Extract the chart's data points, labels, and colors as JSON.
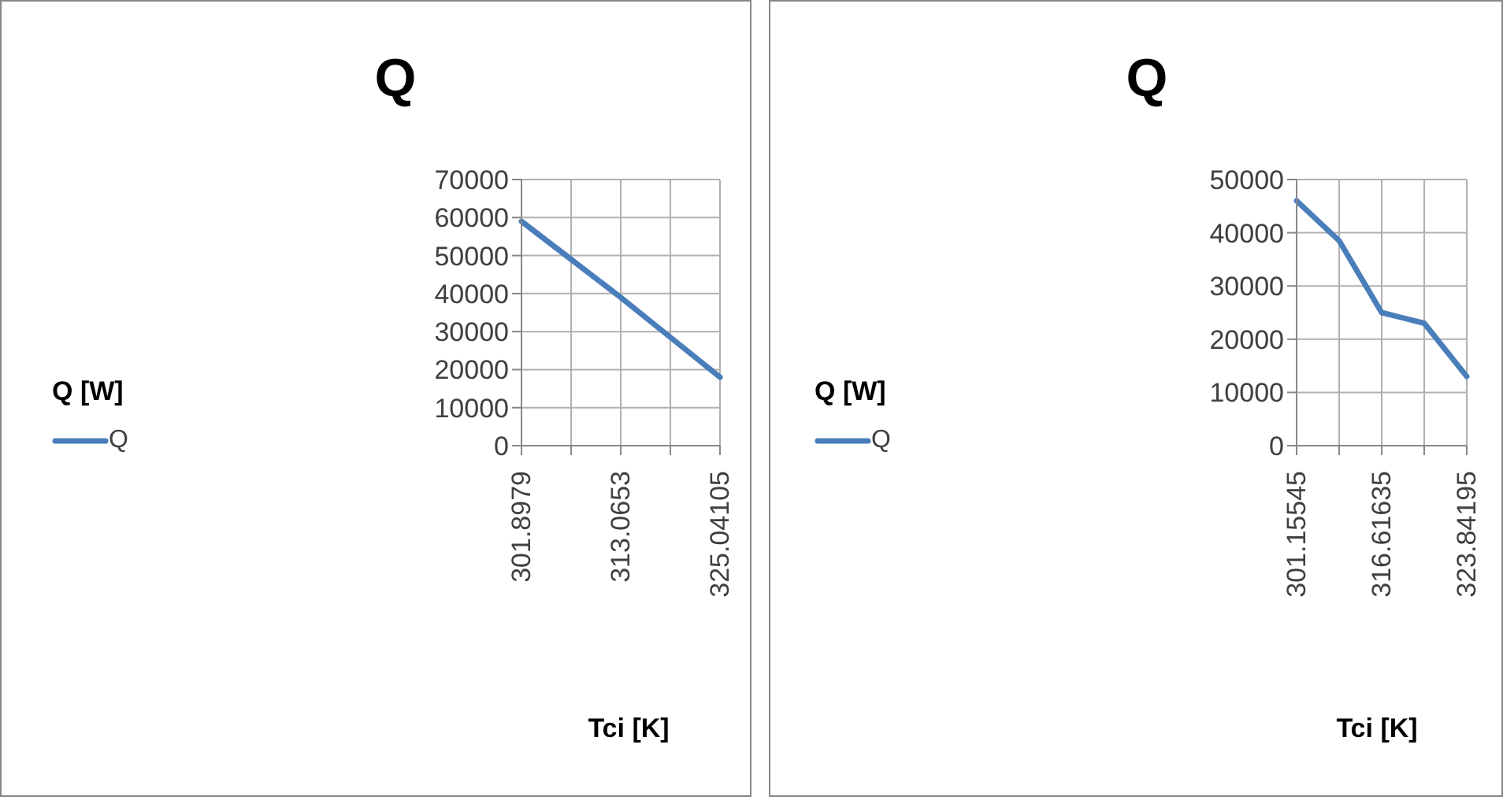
{
  "chart_data": [
    {
      "type": "line",
      "title": "Q",
      "xlabel": "Tci [K]",
      "legend_title": "Q [W]",
      "legend": "left",
      "grid": true,
      "marker": "none",
      "categories": [
        "301.8979",
        null,
        "313.0653",
        null,
        "325.04105"
      ],
      "ylim": [
        0,
        70000
      ],
      "yticks": [
        0,
        10000,
        20000,
        30000,
        40000,
        50000,
        60000,
        70000
      ],
      "series": [
        {
          "name": "Q",
          "color": "#4a7ebb",
          "values": [
            59000,
            49000,
            39000,
            28500,
            18000
          ]
        }
      ]
    },
    {
      "type": "line",
      "title": "Q",
      "xlabel": "Tci [K]",
      "legend_title": "Q [W]",
      "legend": "left",
      "grid": true,
      "marker": "none",
      "categories": [
        "301.15545",
        null,
        "316.61635",
        null,
        "323.84195"
      ],
      "ylim": [
        0,
        50000
      ],
      "yticks": [
        0,
        10000,
        20000,
        30000,
        40000,
        50000
      ],
      "series": [
        {
          "name": "Q",
          "color": "#4a7ebb",
          "values": [
            46000,
            38500,
            25000,
            23000,
            13000
          ]
        }
      ]
    }
  ]
}
